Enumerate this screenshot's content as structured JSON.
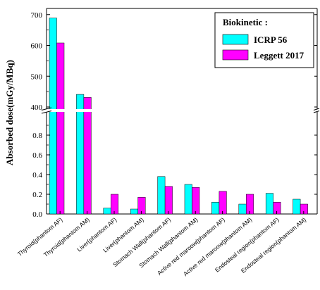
{
  "chart_data": {
    "type": "bar",
    "ylabel": "Absorbed dose(mGy/MBq)",
    "categories": [
      "Thyroid(phantom AF)",
      "Thyroid(phantom AM)",
      "Liver(phantom AF)",
      "Liver(phantom AM)",
      "Stomach Wall(phantom AF)",
      "Stomach Wall(phantom AM)",
      "Active red maroow(phantom AF)",
      "Active red maroow(phantom AM)",
      "Endosteal region(phantom AF)",
      "Endosteal region(phantom AM)"
    ],
    "series": [
      {
        "name": "ICRP 56",
        "color": "#00ffff",
        "values": [
          689,
          441,
          0.06,
          0.05,
          0.38,
          0.3,
          0.12,
          0.1,
          0.21,
          0.15
        ]
      },
      {
        "name": "Leggett 2017",
        "color": "#ff00ff",
        "values": [
          608,
          431,
          0.2,
          0.17,
          0.28,
          0.27,
          0.23,
          0.2,
          0.12,
          0.1
        ]
      }
    ],
    "legend": {
      "title": "Biokinetic :",
      "position": "top-right"
    },
    "axis_break": {
      "lower_range": [
        0,
        0.9
      ],
      "upper_range": [
        400,
        720
      ]
    },
    "lower_ticks": [
      "0.0",
      "0.2",
      "0.4",
      "0.6",
      "0.8"
    ],
    "upper_ticks": [
      "400",
      "500",
      "600",
      "700"
    ]
  }
}
